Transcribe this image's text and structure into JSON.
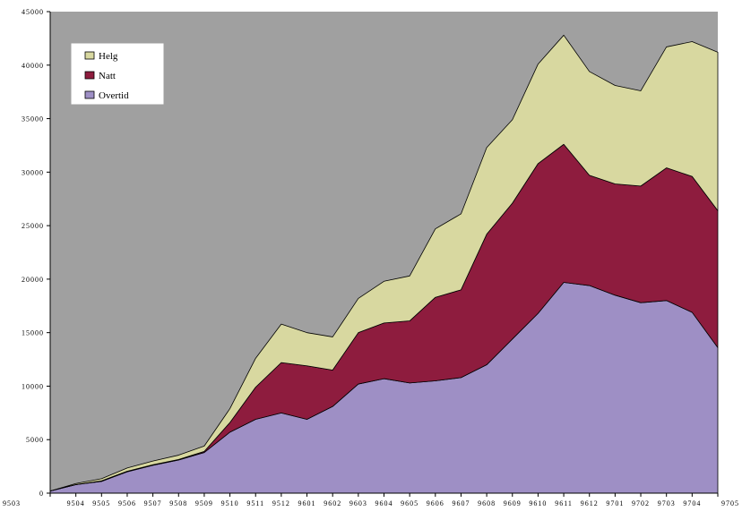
{
  "chart_data": {
    "type": "area",
    "stacked": true,
    "title": "",
    "xlabel": "",
    "ylabel": "",
    "ylim": [
      0,
      45000
    ],
    "yticks": [
      0,
      5000,
      10000,
      15000,
      20000,
      25000,
      30000,
      35000,
      40000,
      45000
    ],
    "ytick_labels": [
      "0",
      "5000",
      "10000",
      "15000",
      "20000",
      "25000",
      "30000",
      "35000",
      "40000",
      "45000"
    ],
    "categories": [
      "9503",
      "9504",
      "9505",
      "9506",
      "9507",
      "9508",
      "9509",
      "9510",
      "9511",
      "9512",
      "9601",
      "9602",
      "9603",
      "9604",
      "9605",
      "9606",
      "9607",
      "9608",
      "9609",
      "9610",
      "9611",
      "9612",
      "9701",
      "9702",
      "9703",
      "9704",
      "9705"
    ],
    "xtick_labels": [
      "9503",
      "9504",
      "9505",
      "9506",
      "9507",
      "9508",
      "9509",
      "9510",
      "9511",
      "9512",
      "9601",
      "9602",
      "9603",
      "9604",
      "9605",
      "9606",
      "9607",
      "9608",
      "9609",
      "9610",
      "9611",
      "9612",
      "9701",
      "9702",
      "9703",
      "9704",
      "9705"
    ],
    "series": [
      {
        "name": "Overtid",
        "color": "#9e8fc5",
        "values": [
          200,
          800,
          1100,
          2000,
          2600,
          3100,
          3800,
          5700,
          6900,
          7500,
          6900,
          8100,
          10200,
          10700,
          10300,
          10500,
          10800,
          12000,
          14400,
          16800,
          19700,
          19400,
          18500,
          17800,
          18000,
          16900,
          13600
        ]
      },
      {
        "name": "Natt",
        "color": "#8e1c3e",
        "values": [
          0,
          0,
          50,
          50,
          50,
          50,
          100,
          900,
          3000,
          4700,
          5000,
          3400,
          4800,
          5200,
          5800,
          7800,
          8200,
          12200,
          12700,
          14000,
          12900,
          10300,
          10400,
          10900,
          12400,
          12700,
          12800
        ]
      },
      {
        "name": "Helg",
        "color": "#d8d8a0",
        "values": [
          0,
          100,
          200,
          300,
          350,
          400,
          500,
          1300,
          2700,
          3600,
          3100,
          3100,
          3200,
          3900,
          4200,
          6400,
          7100,
          8100,
          7800,
          9300,
          10200,
          9700,
          9200,
          8900,
          11300,
          12600,
          14800
        ]
      }
    ],
    "legend": {
      "position": "top-left",
      "order": [
        "Helg",
        "Natt",
        "Overtid"
      ]
    },
    "plot_background": "#a0a0a0",
    "grid": false
  }
}
